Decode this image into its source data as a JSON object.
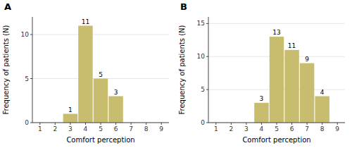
{
  "chart_data": [
    {
      "type": "bar",
      "title": "A",
      "x": [
        3,
        4,
        5,
        6
      ],
      "values": [
        1,
        11,
        5,
        3
      ],
      "color": "#c8bc6e",
      "xlim": [
        0.5,
        9.5
      ],
      "ylim": [
        0,
        12
      ],
      "xticks": [
        1,
        2,
        3,
        4,
        5,
        6,
        7,
        8,
        9
      ],
      "yticks": [
        0,
        5,
        10
      ],
      "xlabel": "Comfort perception",
      "ylabel": "Frequency of patients (N)",
      "data_labels": true
    },
    {
      "type": "bar",
      "title": "B",
      "x": [
        4,
        5,
        6,
        7,
        8
      ],
      "values": [
        3,
        13,
        11,
        9,
        4
      ],
      "color": "#c8bc6e",
      "xlim": [
        0.5,
        9.5
      ],
      "ylim": [
        0,
        16
      ],
      "xticks": [
        1,
        2,
        3,
        4,
        5,
        6,
        7,
        8,
        9
      ],
      "yticks": [
        0,
        5,
        10,
        15
      ],
      "xlabel": "Comfort perception",
      "ylabel": "Frequency of patients (N)",
      "data_labels": true
    }
  ]
}
